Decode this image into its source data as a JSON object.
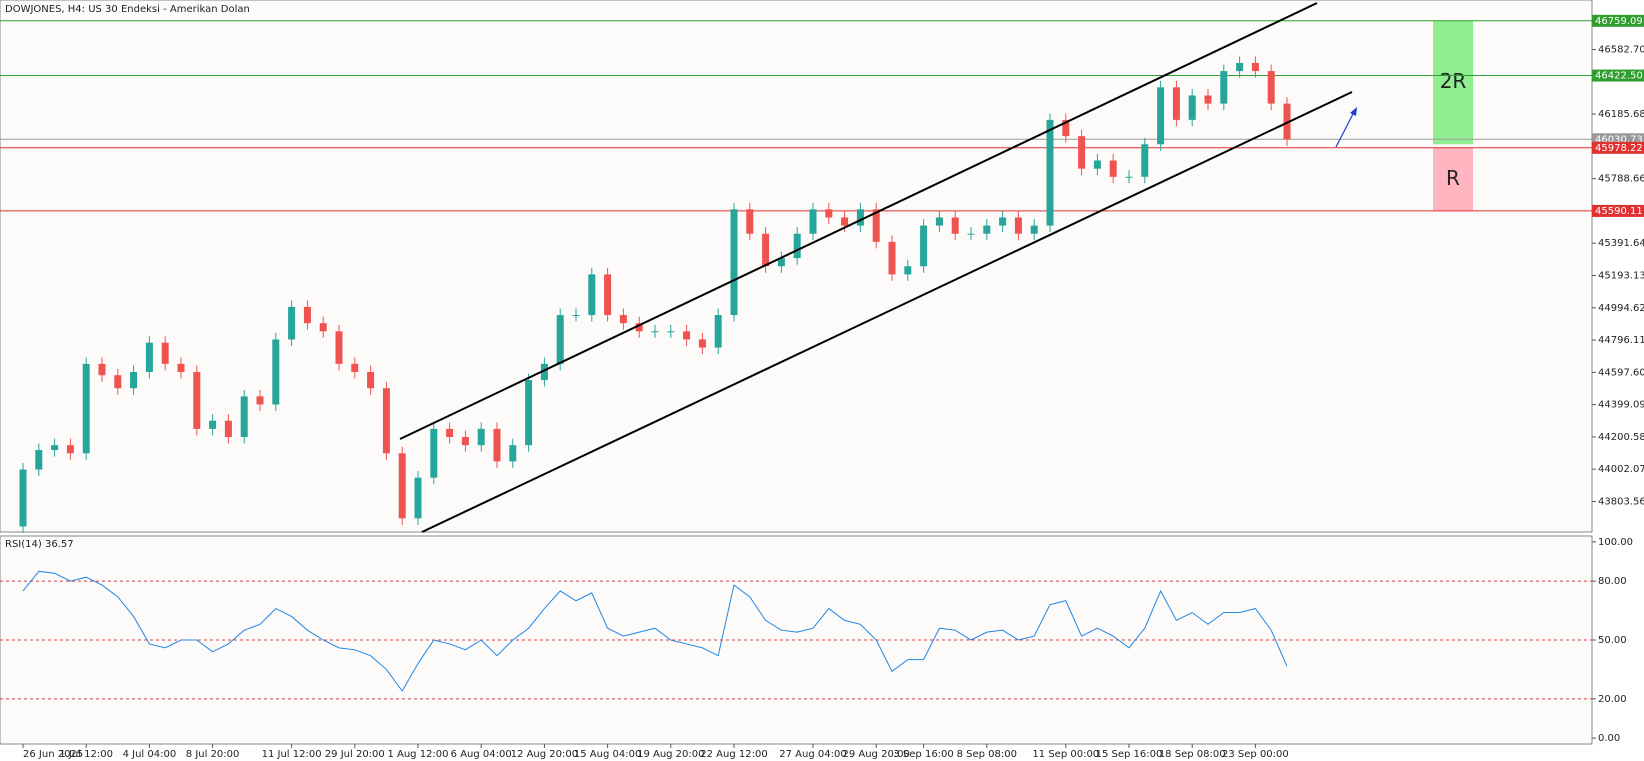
{
  "chart_data": [
    {
      "type": "candlestick",
      "title": "DOWJONES, H4:  US 30 Endeksi - Amerikan Dolan",
      "categories": [
        "26 Jun 2025",
        null,
        null,
        null,
        "1 Jul 12:00",
        null,
        null,
        null,
        "4 Jul 04:00",
        null,
        null,
        null,
        "8 Jul 20:00",
        null,
        null,
        null,
        null,
        "11 Jul 12:00",
        null,
        null,
        null,
        "29 Jul 20:00",
        null,
        null,
        null,
        "1 Aug 12:00",
        null,
        null,
        null,
        "6 Aug 04:00",
        null,
        null,
        null,
        "12 Aug 20:00",
        null,
        null,
        null,
        "15 Aug 04:00",
        null,
        null,
        null,
        "19 Aug 20:00",
        null,
        null,
        null,
        "22 Aug 12:00",
        null,
        null,
        null,
        null,
        "27 Aug 04:00",
        null,
        null,
        null,
        "29 Aug 20:00",
        null,
        null,
        "3 Sep 16:00",
        null,
        null,
        null,
        "8 Sep 08:00",
        null,
        null,
        null,
        null,
        "11 Sep 00:00",
        null,
        null,
        null,
        "15 Sep 16:00",
        null,
        null,
        null,
        "18 Sep 08:00",
        null,
        null,
        null,
        "23 Sep 00:00",
        null,
        null
      ],
      "open": [
        43650,
        44000,
        44120,
        44150,
        44100,
        44650,
        44580,
        44500,
        44600,
        44780,
        44650,
        44600,
        44250,
        44300,
        44200,
        44450,
        44400,
        44800,
        45000,
        44900,
        44850,
        44650,
        44600,
        44500,
        44100,
        43700,
        43950,
        44250,
        44200,
        44150,
        44250,
        44050,
        44150,
        44550,
        44650,
        44950,
        44950,
        45200,
        44950,
        44900,
        44850,
        44850,
        44850,
        44800,
        44750,
        44950,
        45600,
        45450,
        45250,
        45300,
        45450,
        45600,
        45550,
        45500,
        45600,
        45400,
        45200,
        45250,
        45500,
        45550,
        45450,
        45450,
        45500,
        45550,
        45450,
        45500,
        46150,
        46050,
        45850,
        45900,
        45800,
        45800,
        46000,
        46350,
        46150,
        46300,
        46250,
        46450,
        46500,
        46450,
        46250
      ],
      "high": [
        44040,
        44160,
        44190,
        44190,
        44690,
        44690,
        44620,
        44640,
        44820,
        44820,
        44690,
        44640,
        44340,
        44340,
        44490,
        44490,
        44840,
        45040,
        45040,
        44940,
        44890,
        44690,
        44640,
        44540,
        44140,
        43990,
        44290,
        44290,
        44240,
        44290,
        44290,
        44190,
        44590,
        44690,
        44990,
        44990,
        45240,
        45240,
        44990,
        44940,
        44890,
        44890,
        44890,
        44840,
        44990,
        45640,
        45640,
        45490,
        45340,
        45490,
        45640,
        45640,
        45590,
        45640,
        45640,
        45440,
        45290,
        45540,
        45590,
        45590,
        45490,
        45540,
        45590,
        45590,
        45540,
        46190,
        46190,
        46090,
        45940,
        45940,
        45840,
        46040,
        46390,
        46390,
        46340,
        46340,
        46490,
        46540,
        46540,
        46490,
        46290
      ],
      "low": [
        43610,
        43960,
        44080,
        44060,
        44060,
        44540,
        44460,
        44460,
        44560,
        44610,
        44560,
        44210,
        44210,
        44160,
        44160,
        44360,
        44360,
        44760,
        44860,
        44810,
        44610,
        44560,
        44460,
        44060,
        43660,
        43660,
        43910,
        44160,
        44110,
        44110,
        44010,
        44010,
        44110,
        44510,
        44610,
        44910,
        44910,
        44910,
        44860,
        44810,
        44810,
        44810,
        44760,
        44710,
        44710,
        44910,
        45410,
        45210,
        45210,
        45260,
        45410,
        45510,
        45460,
        45460,
        45360,
        45160,
        45160,
        45210,
        45460,
        45410,
        45410,
        45410,
        45460,
        45410,
        45410,
        45460,
        46010,
        45810,
        45810,
        45760,
        45760,
        45760,
        45960,
        46110,
        46110,
        46210,
        46210,
        46410,
        46410,
        46210,
        45990
      ],
      "close": [
        44000,
        44120,
        44150,
        44100,
        44650,
        44580,
        44500,
        44600,
        44780,
        44650,
        44600,
        44250,
        44300,
        44200,
        44450,
        44400,
        44800,
        45000,
        44900,
        44850,
        44650,
        44600,
        44500,
        44100,
        43700,
        43950,
        44250,
        44200,
        44150,
        44250,
        44050,
        44150,
        44550,
        44650,
        44950,
        44950,
        45200,
        44950,
        44900,
        44850,
        44850,
        44850,
        44800,
        44750,
        44950,
        45600,
        45450,
        45250,
        45300,
        45450,
        45600,
        45550,
        45500,
        45600,
        45400,
        45200,
        45250,
        45500,
        45550,
        45450,
        45450,
        45500,
        45550,
        45450,
        45500,
        46150,
        46050,
        45850,
        45900,
        45800,
        45800,
        46000,
        46350,
        46150,
        46300,
        46250,
        46450,
        46500,
        46450,
        46250,
        46030
      ],
      "up_color": "#26a69a",
      "down_color": "#ef5350",
      "ylim": [
        43616,
        46887
      ],
      "yticks": [
        43803.56,
        44002.07,
        44200.58,
        44399.09,
        {
          "value": 44597.6,
          "label": "44597.60"
        },
        44796.11,
        44994.62,
        45193.13,
        45391.64,
        45788.66,
        46185.68,
        {
          "value": 46582.7,
          "label": "46582.70"
        }
      ],
      "levels": [
        {
          "value": 46759.09,
          "color": "#2e9e2e"
        },
        {
          "value": 46422.5,
          "label": "46422.50",
          "color": "#2e9e2e"
        },
        {
          "value": 46030.73,
          "color": "#999999"
        },
        {
          "value": 45978.22,
          "color": "#e03030"
        },
        {
          "value": 45590.11,
          "color": "#e03030"
        }
      ],
      "annotations": [
        {
          "text": "2R",
          "top": 46759.09,
          "bottom": 46000,
          "color": "#90ee90"
        },
        {
          "text": "R",
          "top": 45978.22,
          "bottom": 45590.11,
          "color": "#ffb6c1"
        }
      ]
    },
    {
      "type": "line",
      "title": "RSI(14) 36.57",
      "color": "#1e88e5",
      "values": [
        75,
        85,
        84,
        80,
        82,
        78,
        72,
        62,
        48,
        46,
        50,
        50,
        44,
        48,
        55,
        58,
        66,
        62,
        55,
        50,
        46,
        45,
        42,
        35,
        24,
        38,
        50,
        48,
        45,
        50,
        42,
        50,
        56,
        66,
        75,
        70,
        74,
        56,
        52,
        54,
        56,
        50,
        48,
        46,
        42,
        78,
        72,
        60,
        55,
        54,
        56,
        66,
        60,
        58,
        50,
        34,
        40,
        40,
        56,
        55,
        50,
        54,
        55,
        50,
        52,
        68,
        70,
        52,
        56,
        52,
        46,
        56,
        75,
        60,
        64,
        58,
        64,
        64,
        66,
        55,
        36.57
      ],
      "ylim": [
        -3,
        103
      ],
      "yticks": [
        {
          "value": 100,
          "label": "100.00"
        },
        {
          "value": 80,
          "label": "80.00"
        },
        {
          "value": 50,
          "label": "50.00"
        },
        {
          "value": 20,
          "label": "20.00"
        },
        {
          "value": 0,
          "label": "0.00"
        }
      ],
      "levels": [
        80,
        50,
        20
      ],
      "level_color": "#d04040"
    }
  ]
}
